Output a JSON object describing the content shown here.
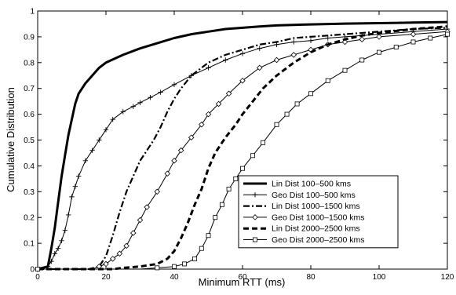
{
  "chart_data": {
    "type": "line",
    "title": "",
    "xlabel": "Minimum RTT (ms)",
    "ylabel": "Cumulative Distribution",
    "xlim": [
      0,
      120
    ],
    "ylim": [
      0,
      1
    ],
    "x_ticks": [
      "0",
      "20",
      "40",
      "60",
      "80",
      "100",
      "120"
    ],
    "y_ticks": [
      "0",
      "0.1",
      "0.2",
      "0.3",
      "0.4",
      "0.5",
      "0.6",
      "0.7",
      "0.8",
      "0.9",
      "1"
    ],
    "grid": false,
    "legend_position": "bottom-right",
    "series": [
      {
        "name": "Lin Dist 100–500 kms",
        "style": "solid-thick",
        "marker": "none",
        "points": [
          [
            0,
            0
          ],
          [
            3,
            0.01
          ],
          [
            4,
            0.08
          ],
          [
            5,
            0.16
          ],
          [
            6,
            0.26
          ],
          [
            7,
            0.36
          ],
          [
            8,
            0.44
          ],
          [
            9,
            0.52
          ],
          [
            10,
            0.58
          ],
          [
            11,
            0.64
          ],
          [
            12,
            0.68
          ],
          [
            14,
            0.72
          ],
          [
            16,
            0.75
          ],
          [
            18,
            0.78
          ],
          [
            20,
            0.8
          ],
          [
            25,
            0.83
          ],
          [
            30,
            0.855
          ],
          [
            35,
            0.875
          ],
          [
            40,
            0.895
          ],
          [
            45,
            0.91
          ],
          [
            50,
            0.92
          ],
          [
            55,
            0.93
          ],
          [
            60,
            0.935
          ],
          [
            65,
            0.94
          ],
          [
            70,
            0.944
          ],
          [
            80,
            0.948
          ],
          [
            90,
            0.951
          ],
          [
            100,
            0.953
          ],
          [
            110,
            0.955
          ],
          [
            120,
            0.957
          ]
        ]
      },
      {
        "name": "Geo Dist 100–500 kms",
        "style": "solid-thin",
        "marker": "plus",
        "points": [
          [
            0,
            0
          ],
          [
            3,
            0.01
          ],
          [
            4,
            0.03
          ],
          [
            5,
            0.06
          ],
          [
            6,
            0.08
          ],
          [
            7,
            0.11
          ],
          [
            8,
            0.15
          ],
          [
            9,
            0.21
          ],
          [
            10,
            0.28
          ],
          [
            11,
            0.32
          ],
          [
            12,
            0.36
          ],
          [
            14,
            0.42
          ],
          [
            16,
            0.46
          ],
          [
            18,
            0.5
          ],
          [
            20,
            0.54
          ],
          [
            22,
            0.58
          ],
          [
            25,
            0.61
          ],
          [
            28,
            0.63
          ],
          [
            30,
            0.645
          ],
          [
            33,
            0.665
          ],
          [
            36,
            0.685
          ],
          [
            40,
            0.715
          ],
          [
            45,
            0.75
          ],
          [
            50,
            0.78
          ],
          [
            55,
            0.81
          ],
          [
            60,
            0.835
          ],
          [
            65,
            0.855
          ],
          [
            70,
            0.87
          ],
          [
            75,
            0.88
          ],
          [
            80,
            0.885
          ],
          [
            85,
            0.895
          ],
          [
            90,
            0.9
          ],
          [
            95,
            0.905
          ],
          [
            100,
            0.91
          ],
          [
            110,
            0.92
          ],
          [
            120,
            0.93
          ]
        ]
      },
      {
        "name": "Lin Dist 1000–1500 kms",
        "style": "dash-dot",
        "marker": "none",
        "points": [
          [
            0,
            0
          ],
          [
            15,
            0
          ],
          [
            18,
            0.01
          ],
          [
            20,
            0.05
          ],
          [
            22,
            0.13
          ],
          [
            24,
            0.22
          ],
          [
            26,
            0.3
          ],
          [
            28,
            0.36
          ],
          [
            30,
            0.42
          ],
          [
            32,
            0.46
          ],
          [
            34,
            0.5
          ],
          [
            36,
            0.55
          ],
          [
            38,
            0.61
          ],
          [
            40,
            0.66
          ],
          [
            42,
            0.7
          ],
          [
            45,
            0.75
          ],
          [
            50,
            0.8
          ],
          [
            55,
            0.83
          ],
          [
            60,
            0.85
          ],
          [
            65,
            0.87
          ],
          [
            70,
            0.88
          ],
          [
            75,
            0.895
          ],
          [
            80,
            0.9
          ],
          [
            85,
            0.905
          ],
          [
            90,
            0.91
          ],
          [
            100,
            0.92
          ],
          [
            110,
            0.93
          ],
          [
            120,
            0.935
          ]
        ]
      },
      {
        "name": "Geo Dist 1000–1500 kms",
        "style": "solid-thin",
        "marker": "diamond",
        "points": [
          [
            0,
            0
          ],
          [
            16,
            0
          ],
          [
            18,
            0.01
          ],
          [
            20,
            0.02
          ],
          [
            22,
            0.04
          ],
          [
            24,
            0.06
          ],
          [
            26,
            0.09
          ],
          [
            28,
            0.14
          ],
          [
            30,
            0.19
          ],
          [
            32,
            0.24
          ],
          [
            35,
            0.3
          ],
          [
            38,
            0.37
          ],
          [
            40,
            0.42
          ],
          [
            42,
            0.46
          ],
          [
            45,
            0.51
          ],
          [
            48,
            0.56
          ],
          [
            50,
            0.6
          ],
          [
            53,
            0.64
          ],
          [
            56,
            0.68
          ],
          [
            60,
            0.73
          ],
          [
            65,
            0.78
          ],
          [
            70,
            0.81
          ],
          [
            75,
            0.83
          ],
          [
            80,
            0.85
          ],
          [
            85,
            0.87
          ],
          [
            90,
            0.88
          ],
          [
            95,
            0.89
          ],
          [
            100,
            0.9
          ],
          [
            110,
            0.91
          ],
          [
            120,
            0.92
          ]
        ]
      },
      {
        "name": "Lin Dist 2000–2500 kms",
        "style": "dashed-thick",
        "marker": "none",
        "points": [
          [
            0,
            0
          ],
          [
            22,
            0
          ],
          [
            25,
            0.005
          ],
          [
            30,
            0.01
          ],
          [
            35,
            0.02
          ],
          [
            38,
            0.04
          ],
          [
            40,
            0.07
          ],
          [
            42,
            0.12
          ],
          [
            44,
            0.18
          ],
          [
            46,
            0.25
          ],
          [
            48,
            0.31
          ],
          [
            50,
            0.39
          ],
          [
            52,
            0.45
          ],
          [
            55,
            0.51
          ],
          [
            58,
            0.56
          ],
          [
            60,
            0.6
          ],
          [
            63,
            0.65
          ],
          [
            66,
            0.7
          ],
          [
            70,
            0.75
          ],
          [
            75,
            0.8
          ],
          [
            80,
            0.84
          ],
          [
            85,
            0.87
          ],
          [
            90,
            0.89
          ],
          [
            95,
            0.905
          ],
          [
            100,
            0.915
          ],
          [
            110,
            0.93
          ],
          [
            120,
            0.94
          ]
        ]
      },
      {
        "name": "Geo Dist 2000–2500 kms",
        "style": "solid-thin",
        "marker": "square",
        "points": [
          [
            0,
            0
          ],
          [
            30,
            0
          ],
          [
            35,
            0.005
          ],
          [
            40,
            0.01
          ],
          [
            43,
            0.02
          ],
          [
            46,
            0.04
          ],
          [
            48,
            0.08
          ],
          [
            50,
            0.13
          ],
          [
            52,
            0.2
          ],
          [
            54,
            0.25
          ],
          [
            56,
            0.31
          ],
          [
            58,
            0.35
          ],
          [
            60,
            0.39
          ],
          [
            63,
            0.44
          ],
          [
            66,
            0.49
          ],
          [
            70,
            0.56
          ],
          [
            73,
            0.6
          ],
          [
            76,
            0.64
          ],
          [
            80,
            0.68
          ],
          [
            85,
            0.73
          ],
          [
            90,
            0.77
          ],
          [
            95,
            0.81
          ],
          [
            100,
            0.84
          ],
          [
            105,
            0.86
          ],
          [
            110,
            0.88
          ],
          [
            115,
            0.895
          ],
          [
            120,
            0.91
          ]
        ]
      }
    ]
  }
}
